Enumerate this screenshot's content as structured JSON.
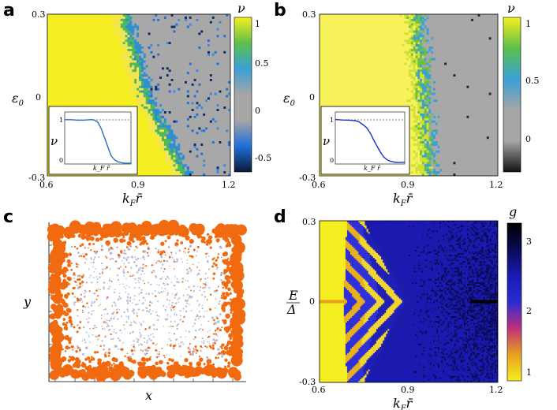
{
  "panels": {
    "a": {
      "label": "a"
    },
    "b": {
      "label": "b"
    },
    "c": {
      "label": "c"
    },
    "d": {
      "label": "d"
    }
  },
  "chart_data": [
    {
      "id": "a",
      "type": "heatmap",
      "title": "",
      "xlabel": "k_F r̄",
      "ylabel": "ε0",
      "xlim": [
        0.6,
        1.2
      ],
      "ylim": [
        -0.3,
        0.3
      ],
      "x_ticks": [
        "0.6",
        "0.9",
        "1.2"
      ],
      "y_ticks": [
        "0.3",
        "0",
        "-0.3"
      ],
      "colorbar": {
        "label": "ν",
        "ticks": [
          "1",
          "0.5",
          "0",
          "-0.5"
        ],
        "range": [
          -0.7,
          1.0
        ],
        "colors": [
          "#0a1a3a",
          "#1e6fd9",
          "#a6a6a6",
          "#a6a6a6",
          "#3aa0d8",
          "#5cc04a",
          "#f5ef1f"
        ]
      },
      "boundary_kFr": {
        "top": 0.85,
        "mid": 0.92,
        "bottom": 1.05
      },
      "inset": {
        "ylabel": "ν",
        "xlabel": "k_F r̄",
        "y_ticks": [
          "1",
          "0"
        ],
        "curve_x": [
          0,
          0.1,
          0.2,
          0.3,
          0.4,
          0.45,
          0.5,
          0.55,
          0.6,
          0.65,
          0.7,
          0.75,
          0.8,
          0.85,
          0.9,
          1.0
        ],
        "curve_y": [
          1.0,
          1.0,
          1.0,
          1.0,
          1.0,
          0.99,
          0.95,
          0.8,
          0.6,
          0.4,
          0.2,
          0.1,
          0.05,
          0.03,
          0.02,
          0.02
        ]
      }
    },
    {
      "id": "b",
      "type": "heatmap",
      "title": "",
      "xlabel": "k_F r̄",
      "ylabel": "ε0",
      "xlim": [
        0.6,
        1.2
      ],
      "ylim": [
        -0.3,
        0.3
      ],
      "x_ticks": [
        "0.6",
        "0.9",
        "1.2"
      ],
      "y_ticks": [
        "0.3",
        "0",
        "-0.3"
      ],
      "colorbar": {
        "label": "ν",
        "ticks": [
          "1",
          "0.5",
          "0"
        ],
        "range": [
          -0.3,
          1.0
        ],
        "colors": [
          "#111111",
          "#a6a6a6",
          "#a6a6a6",
          "#3aa0d8",
          "#5cc04a",
          "#f5ef1f"
        ]
      },
      "boundary_kFr": {
        "top": 0.93,
        "mid": 0.95,
        "bottom": 0.97
      },
      "inset": {
        "ylabel": "ν",
        "xlabel": "k_F r̄",
        "y_ticks": [
          "1",
          "0"
        ],
        "curve_x": [
          0,
          0.1,
          0.2,
          0.3,
          0.35,
          0.4,
          0.45,
          0.5,
          0.55,
          0.6,
          0.65,
          0.7,
          0.75,
          0.8,
          0.85,
          0.9,
          1.0
        ],
        "curve_y": [
          1.0,
          1.0,
          1.0,
          0.98,
          0.95,
          0.9,
          0.82,
          0.7,
          0.55,
          0.4,
          0.28,
          0.17,
          0.1,
          0.06,
          0.05,
          0.04,
          0.04
        ]
      }
    },
    {
      "id": "c",
      "type": "scatter",
      "title": "",
      "xlabel": "x",
      "ylabel": "y",
      "description_series": [
        {
          "name": "edge sites",
          "color": "#f26a0f"
        },
        {
          "name": "bulk sites",
          "color": "#b6b8d6"
        }
      ]
    },
    {
      "id": "d",
      "type": "heatmap",
      "title": "",
      "xlabel": "k_F r̄",
      "ylabel": "E/Δ",
      "xlim": [
        0.6,
        1.2
      ],
      "ylim": [
        -0.3,
        0.3
      ],
      "x_ticks": [
        "0.6",
        "0.9",
        "1.2"
      ],
      "y_ticks": [
        "0.3",
        "0",
        "-0.3"
      ],
      "colorbar": {
        "label": "g",
        "ticks": [
          "3",
          "2",
          "1"
        ],
        "range": [
          0.8,
          3.3
        ],
        "colors": [
          "#f5ef1f",
          "#e8a020",
          "#c0307a",
          "#2b2bd6",
          "#1a1ab0",
          "#0a0a55",
          "#000000"
        ]
      },
      "gap_edge_kFr": {
        "at_E0": 0.68,
        "at_Emax": 0.72
      }
    }
  ],
  "axis_text": {
    "eps0": "ε",
    "eps0_sub": "0",
    "kF": "k",
    "kF_sub": "F",
    "rbar": "r̄",
    "x": "x",
    "y": "y",
    "E": "E",
    "Delta": "Δ",
    "nu": "ν",
    "g": "g"
  }
}
